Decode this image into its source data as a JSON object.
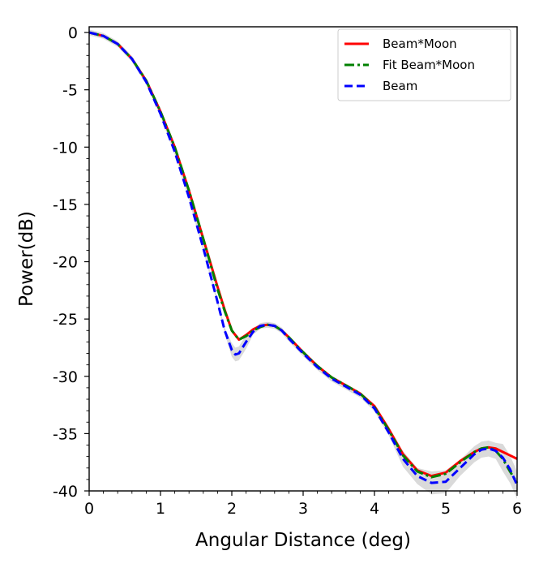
{
  "chart_data": {
    "type": "line",
    "xlabel": "Angular Distance (deg)",
    "ylabel": "Power(dB)",
    "xlim": [
      0,
      6
    ],
    "ylim": [
      -40,
      0.5
    ],
    "xticks": [
      0,
      1,
      2,
      3,
      4,
      5,
      6
    ],
    "xtick_labels": [
      "0",
      "1",
      "2",
      "3",
      "4",
      "5",
      "6"
    ],
    "yticks": [
      0,
      -5,
      -10,
      -15,
      -20,
      -25,
      -30,
      -35,
      -40
    ],
    "ytick_labels": [
      "0",
      "-5",
      "-10",
      "-15",
      "-20",
      "-25",
      "-30",
      "-35",
      "-40"
    ],
    "grid": false,
    "legend_position": "top-right",
    "series": [
      {
        "name": "Beam*Moon",
        "color": "#ff0000",
        "style": "solid",
        "x": [
          0,
          0.2,
          0.4,
          0.6,
          0.8,
          1.0,
          1.2,
          1.4,
          1.6,
          1.8,
          1.9,
          2.0,
          2.1,
          2.2,
          2.3,
          2.4,
          2.5,
          2.6,
          2.7,
          2.8,
          3.0,
          3.2,
          3.4,
          3.6,
          3.8,
          4.0,
          4.2,
          4.4,
          4.6,
          4.8,
          5.0,
          5.2,
          5.4,
          5.5,
          5.6,
          5.7,
          5.8,
          5.9,
          6.0
        ],
        "y": [
          0,
          -0.3,
          -1.0,
          -2.3,
          -4.2,
          -6.9,
          -10.0,
          -13.8,
          -18.0,
          -22.2,
          -24.2,
          -26.0,
          -26.8,
          -26.4,
          -25.9,
          -25.6,
          -25.5,
          -25.6,
          -26.0,
          -26.6,
          -27.9,
          -29.1,
          -30.1,
          -30.8,
          -31.5,
          -32.6,
          -34.6,
          -36.8,
          -38.2,
          -38.7,
          -38.4,
          -37.4,
          -36.6,
          -36.3,
          -36.2,
          -36.3,
          -36.6,
          -36.9,
          -37.2
        ]
      },
      {
        "name": "Fit Beam*Moon",
        "color": "#008000",
        "style": "dashdot",
        "x": [
          0,
          0.2,
          0.4,
          0.6,
          0.8,
          1.0,
          1.2,
          1.4,
          1.6,
          1.8,
          1.9,
          2.0,
          2.1,
          2.2,
          2.3,
          2.4,
          2.5,
          2.6,
          2.7,
          2.8,
          3.0,
          3.2,
          3.4,
          3.6,
          3.8,
          4.0,
          4.2,
          4.4,
          4.6,
          4.8,
          5.0,
          5.2,
          5.4,
          5.5,
          5.6,
          5.7,
          5.8,
          5.9,
          6.0
        ],
        "y": [
          0,
          -0.3,
          -1.0,
          -2.3,
          -4.2,
          -6.9,
          -10.0,
          -13.8,
          -18.0,
          -22.4,
          -24.3,
          -26.0,
          -26.8,
          -26.5,
          -26.0,
          -25.7,
          -25.5,
          -25.6,
          -26.0,
          -26.6,
          -27.9,
          -29.1,
          -30.1,
          -30.8,
          -31.5,
          -32.7,
          -34.7,
          -36.9,
          -38.3,
          -38.8,
          -38.5,
          -37.5,
          -36.6,
          -36.3,
          -36.2,
          -36.5,
          -37.2,
          -38.3,
          -39.3
        ]
      },
      {
        "name": "Beam",
        "color": "#0000ff",
        "style": "dashed",
        "x": [
          0,
          0.2,
          0.4,
          0.6,
          0.8,
          1.0,
          1.2,
          1.4,
          1.6,
          1.8,
          1.9,
          2.0,
          2.05,
          2.1,
          2.2,
          2.3,
          2.4,
          2.5,
          2.6,
          2.7,
          2.8,
          3.0,
          3.2,
          3.4,
          3.6,
          3.8,
          4.0,
          4.2,
          4.4,
          4.6,
          4.8,
          5.0,
          5.2,
          5.4,
          5.5,
          5.6,
          5.7,
          5.8,
          5.9,
          6.0
        ],
        "y": [
          0,
          -0.3,
          -1.0,
          -2.3,
          -4.3,
          -7.1,
          -10.4,
          -14.4,
          -18.8,
          -23.5,
          -26.0,
          -27.7,
          -28.1,
          -28.0,
          -27.0,
          -26.1,
          -25.6,
          -25.5,
          -25.6,
          -26.0,
          -26.7,
          -28.0,
          -29.2,
          -30.2,
          -30.9,
          -31.6,
          -32.8,
          -34.9,
          -37.2,
          -38.7,
          -39.3,
          -39.2,
          -38.0,
          -36.8,
          -36.4,
          -36.3,
          -36.5,
          -37.1,
          -38.1,
          -39.5
        ]
      }
    ]
  }
}
